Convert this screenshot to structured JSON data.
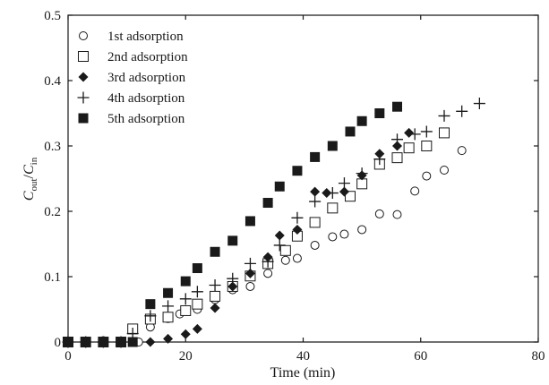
{
  "chart_data": {
    "type": "scatter",
    "xlabel": "Time (min)",
    "ylabel": {
      "main": "C",
      "sub1": "out",
      "sep": "/",
      "main2": "C",
      "sub2": "in"
    },
    "xlim": [
      0,
      80
    ],
    "ylim": [
      0,
      0.5
    ],
    "xticks": [
      "0",
      "20",
      "40",
      "60",
      "80"
    ],
    "yticks": [
      "0",
      "0.1",
      "0.2",
      "0.3",
      "0.4",
      "0.5"
    ],
    "grid": false,
    "legend_position": "top-left",
    "series": [
      {
        "name": "1st adsorption",
        "marker": "circle-open",
        "x": [
          0,
          3,
          6,
          9,
          12,
          14,
          17,
          19,
          22,
          25,
          28,
          31,
          34,
          37,
          39,
          42,
          45,
          47,
          50,
          53,
          56,
          59,
          61,
          64,
          67
        ],
        "y": [
          0,
          0,
          0.002,
          0,
          0,
          0.023,
          0.036,
          0.043,
          0.05,
          0.065,
          0.08,
          0.085,
          0.105,
          0.125,
          0.128,
          0.148,
          0.161,
          0.165,
          0.172,
          0.196,
          0.195,
          0.231,
          0.254,
          0.263,
          0.293
        ]
      },
      {
        "name": "2nd adsorption",
        "marker": "square-open",
        "x": [
          0,
          3,
          6,
          9,
          11,
          14,
          17,
          20,
          22,
          25,
          28,
          31,
          34,
          37,
          39,
          42,
          45,
          48,
          50,
          53,
          56,
          58,
          61,
          64
        ],
        "y": [
          0,
          0,
          0,
          0,
          0.02,
          0.035,
          0.038,
          0.048,
          0.058,
          0.07,
          0.085,
          0.101,
          0.12,
          0.14,
          0.162,
          0.183,
          0.205,
          0.223,
          0.242,
          0.272,
          0.282,
          0.297,
          0.3,
          0.32
        ]
      },
      {
        "name": "3rd adsorption",
        "marker": "diamond-filled",
        "x": [
          0,
          3,
          6,
          9,
          11,
          14,
          17,
          20,
          22,
          25,
          28,
          31,
          34,
          36,
          39,
          42,
          44,
          47,
          50,
          53,
          56,
          58
        ],
        "y": [
          0,
          0,
          0,
          0,
          0,
          0,
          0.005,
          0.012,
          0.02,
          0.052,
          0.085,
          0.105,
          0.13,
          0.163,
          0.172,
          0.23,
          0.228,
          0.23,
          0.255,
          0.288,
          0.3,
          0.32
        ]
      },
      {
        "name": "4th adsorption",
        "marker": "plus",
        "x": [
          0,
          3,
          6,
          9,
          11,
          14,
          17,
          20,
          22,
          25,
          28,
          31,
          34,
          36,
          39,
          42,
          45,
          47,
          50,
          53,
          56,
          59,
          61,
          64,
          67,
          70
        ],
        "y": [
          0,
          0,
          0,
          0,
          0.013,
          0.04,
          0.055,
          0.066,
          0.077,
          0.087,
          0.097,
          0.12,
          0.123,
          0.148,
          0.19,
          0.215,
          0.228,
          0.243,
          0.258,
          0.28,
          0.31,
          0.318,
          0.322,
          0.346,
          0.353,
          0.365
        ]
      },
      {
        "name": "5th adsorption",
        "marker": "square-filled",
        "x": [
          0,
          3,
          6,
          9,
          11,
          14,
          17,
          20,
          22,
          25,
          28,
          31,
          34,
          36,
          39,
          42,
          45,
          48,
          50,
          53,
          56
        ],
        "y": [
          0,
          0,
          0,
          0,
          0,
          0.058,
          0.075,
          0.093,
          0.113,
          0.138,
          0.155,
          0.185,
          0.213,
          0.238,
          0.262,
          0.283,
          0.3,
          0.322,
          0.338,
          0.35,
          0.36
        ]
      }
    ]
  }
}
